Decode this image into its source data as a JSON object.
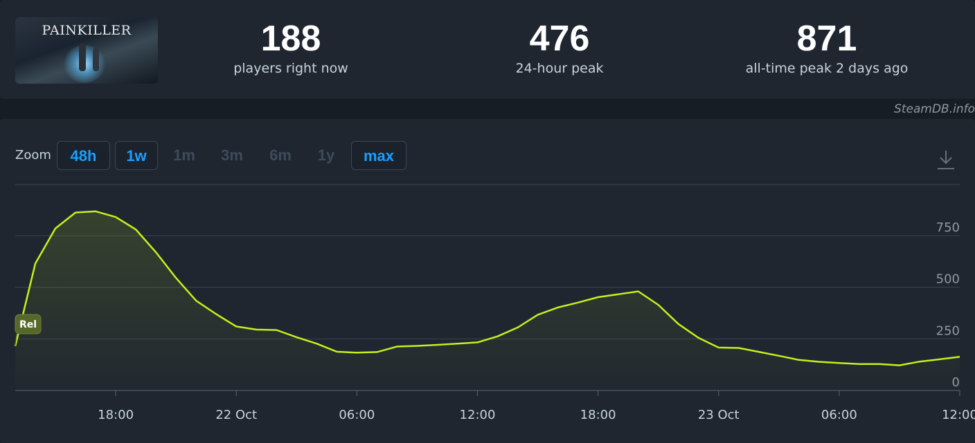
{
  "game": {
    "title": "PAINKILLER"
  },
  "stats": [
    {
      "value": "188",
      "label": "players right now"
    },
    {
      "value": "476",
      "label": "24-hour peak"
    },
    {
      "value": "871",
      "label": "all-time peak 2 days ago"
    }
  ],
  "credit": "SteamDB.info",
  "zoom": {
    "label": "Zoom",
    "options": [
      {
        "label": "48h",
        "active": true
      },
      {
        "label": "1w",
        "active": true
      },
      {
        "label": "1m",
        "active": false
      },
      {
        "label": "3m",
        "active": false
      },
      {
        "label": "6m",
        "active": false
      },
      {
        "label": "1y",
        "active": false
      },
      {
        "label": "max",
        "active": true
      }
    ]
  },
  "icons": {
    "download": "download-icon"
  },
  "colors": {
    "line": "#c6f01c",
    "accent": "#1a9fff",
    "background": "#171d25",
    "panel": "#1f2630"
  },
  "chart_data": {
    "type": "line",
    "title": "",
    "xlabel": "",
    "ylabel": "",
    "ylim": [
      0,
      1000
    ],
    "y_ticks": [
      "0",
      "250",
      "500",
      "750"
    ],
    "x_ticks": [
      "18:00",
      "22 Oct",
      "06:00",
      "12:00",
      "18:00",
      "23 Oct",
      "06:00",
      "12:00"
    ],
    "annotation": "Rel",
    "grid": true,
    "series": [
      {
        "x": [
          "21 Oct 13:00",
          "21 Oct 14:00",
          "21 Oct 15:00",
          "21 Oct 16:00",
          "21 Oct 17:00",
          "21 Oct 18:00",
          "21 Oct 19:00",
          "21 Oct 20:00",
          "21 Oct 21:00",
          "21 Oct 22:00",
          "21 Oct 23:00",
          "22 Oct 00:00",
          "22 Oct 01:00",
          "22 Oct 02:00",
          "22 Oct 03:00",
          "22 Oct 04:00",
          "22 Oct 05:00",
          "22 Oct 06:00",
          "22 Oct 07:00",
          "22 Oct 08:00",
          "22 Oct 09:00",
          "22 Oct 10:00",
          "22 Oct 11:00",
          "22 Oct 12:00",
          "22 Oct 13:00",
          "22 Oct 14:00",
          "22 Oct 15:00",
          "22 Oct 16:00",
          "22 Oct 17:00",
          "22 Oct 18:00",
          "22 Oct 19:00",
          "22 Oct 20:00",
          "22 Oct 21:00",
          "22 Oct 22:00",
          "22 Oct 23:00",
          "23 Oct 00:00",
          "23 Oct 01:00",
          "23 Oct 02:00",
          "23 Oct 03:00",
          "23 Oct 04:00",
          "23 Oct 05:00",
          "23 Oct 06:00",
          "23 Oct 07:00",
          "23 Oct 08:00",
          "23 Oct 09:00",
          "23 Oct 10:00",
          "23 Oct 11:00",
          "23 Oct 12:00"
        ],
        "y": [
          215,
          615,
          785,
          862,
          868,
          840,
          780,
          670,
          545,
          435,
          370,
          310,
          295,
          293,
          258,
          227,
          188,
          183,
          186,
          213,
          216,
          221,
          227,
          233,
          262,
          305,
          367,
          402,
          426,
          452,
          466,
          480,
          415,
          322,
          255,
          208,
          206,
          187,
          168,
          148,
          139,
          133,
          128,
          128,
          122,
          140,
          151,
          163
        ]
      }
    ]
  }
}
